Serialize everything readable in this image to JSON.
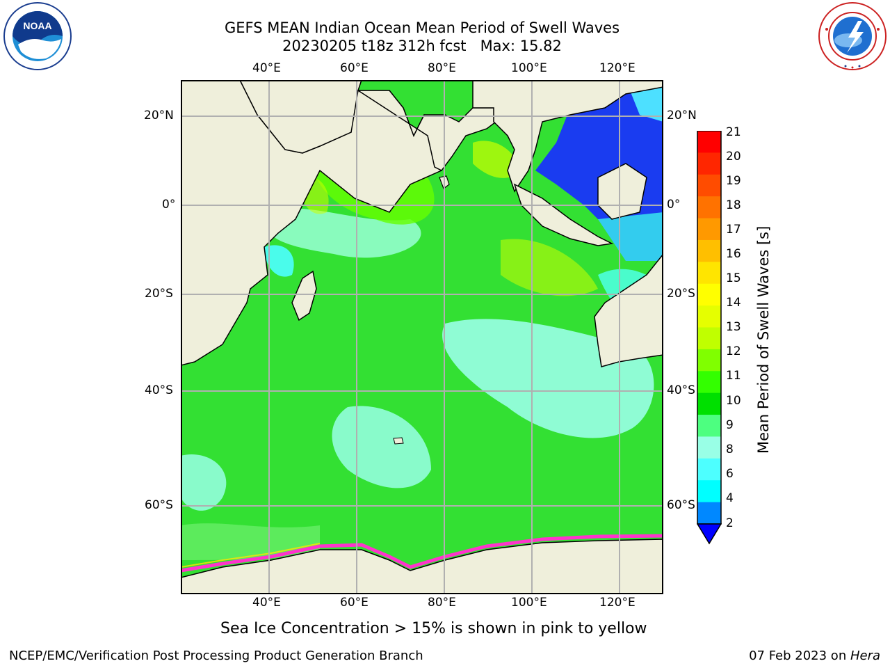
{
  "title": {
    "line1": "GEFS MEAN Indian Ocean Mean Period of Swell Waves",
    "line2": "20230205 t18z 312h fcst   Max: 15.82"
  },
  "logos": {
    "left": "NOAA",
    "left_ring": "NATIONAL OCEANIC AND ATMOSPHERIC ADMINISTRATION · U.S. DEPARTMENT OF COMMERCE",
    "right_ring": "NATIONAL WEATHER SERVICE"
  },
  "map": {
    "lon_ticks": [
      "40°E",
      "60°E",
      "80°E",
      "100°E",
      "120°E"
    ],
    "lat_ticks": [
      "20°N",
      "0°",
      "20°S",
      "40°S",
      "60°S"
    ],
    "land_color": "#efefdb",
    "ocean_dominant_color": "#33e033",
    "ice_color": "#ff33cc"
  },
  "colorbar": {
    "label": "Mean Period of Swell Waves [s]",
    "ticks": [
      "21",
      "20",
      "19",
      "18",
      "17",
      "16",
      "15",
      "14",
      "13",
      "12",
      "11",
      "10",
      "9",
      "8",
      "6",
      "4",
      "2"
    ],
    "colors": [
      "#ff0000",
      "#ff2600",
      "#ff4c00",
      "#ff7200",
      "#ff9900",
      "#ffbf00",
      "#ffe500",
      "#ffff00",
      "#e5ff00",
      "#c0ff00",
      "#80ff00",
      "#33ff00",
      "#00e000",
      "#4dff80",
      "#99ffe6",
      "#4dffff",
      "#00ffff",
      "#0088ff",
      "#0000ff"
    ]
  },
  "caption": "Sea Ice Concentration > 15% is shown in pink to yellow",
  "footer": {
    "left": "NCEP/EMC/Verification Post Processing Product Generation Branch",
    "right_date": "07 Feb 2023 on ",
    "right_host": "Hera"
  }
}
